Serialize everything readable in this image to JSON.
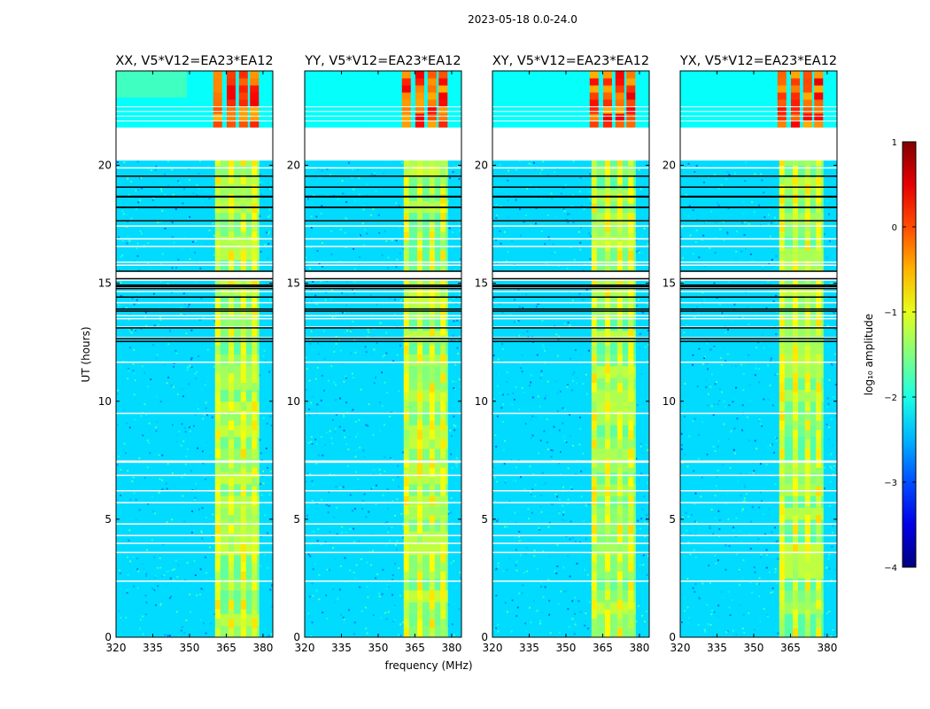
{
  "chart_data": {
    "type": "heatmap",
    "suptitle": "2023-05-18 0.0-24.0",
    "xlabel": "frequency (MHz)",
    "ylabel": "UT (hours)",
    "xlim": [
      320,
      384
    ],
    "ylim": [
      0,
      24
    ],
    "xticks": [
      "320",
      "335",
      "350",
      "365",
      "380"
    ],
    "xtick_values": [
      320,
      335,
      350,
      365,
      380
    ],
    "yticks": [
      "0",
      "5",
      "10",
      "15",
      "20"
    ],
    "ytick_values": [
      0,
      5,
      10,
      15,
      20
    ],
    "panels": [
      {
        "title": "XX, V5*V12=EA23*EA12"
      },
      {
        "title": "YY, V5*V12=EA23*EA12"
      },
      {
        "title": "XY, V5*V12=EA23*EA12"
      },
      {
        "title": "YX, V5*V12=EA23*EA12"
      }
    ],
    "colorbar": {
      "label": "log₁₀ amplitude",
      "min": -4,
      "max": 1,
      "ticks": [
        "1",
        "0",
        "−1",
        "−2",
        "−3",
        "−4"
      ],
      "tick_values": [
        1,
        0,
        -1,
        -2,
        -3,
        -4
      ],
      "colormap": "jet"
    },
    "missing_data_hours": [
      [
        20.2,
        21.6
      ],
      [
        15.1,
        15.5
      ]
    ],
    "strong_rfi_band_mhz": [
      360.5,
      378.5
    ],
    "strong_rfi_channels_mhz": [
      361.5,
      367,
      372,
      376.5
    ]
  }
}
